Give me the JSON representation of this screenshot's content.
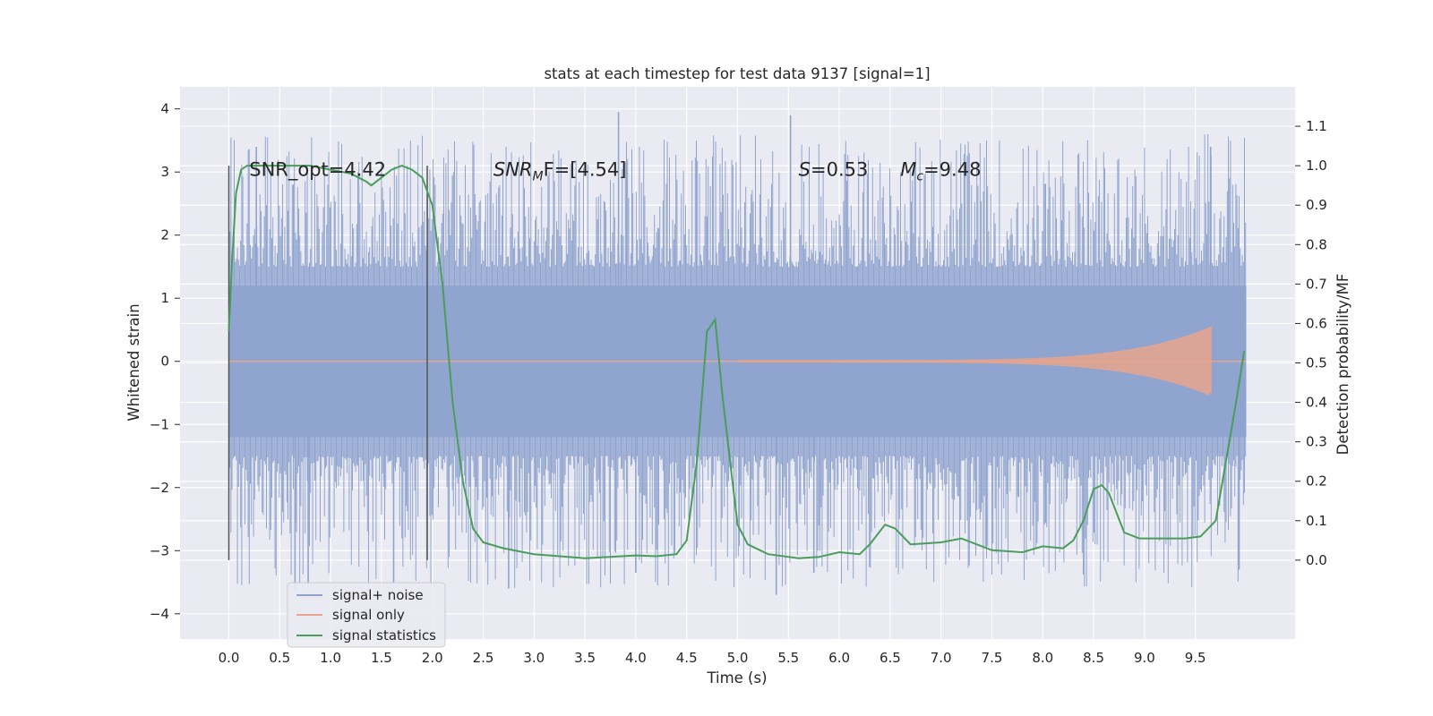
{
  "chart_data": {
    "type": "line",
    "title": "stats at each timestep for test data 9137 [signal=1]",
    "xlabel": "Time (s)",
    "ylabel": "Whitened strain",
    "y2label": "Detection probability/MF",
    "xlim": [
      -0.48,
      10.48
    ],
    "ylim": [
      -4.4,
      4.35
    ],
    "y2lim": [
      -0.2,
      1.2
    ],
    "x_ticks": [
      0.0,
      0.5,
      1.0,
      1.5,
      2.0,
      2.5,
      3.0,
      3.5,
      4.0,
      4.5,
      5.0,
      5.5,
      6.0,
      6.5,
      7.0,
      7.5,
      8.0,
      8.5,
      9.0,
      9.5
    ],
    "x_tick_labels": [
      "0.0",
      "0.5",
      "1.0",
      "1.5",
      "2.0",
      "2.5",
      "3.0",
      "3.5",
      "4.0",
      "4.5",
      "5.0",
      "5.5",
      "6.0",
      "6.5",
      "7.0",
      "7.5",
      "8.0",
      "8.5",
      "9.0",
      "9.5"
    ],
    "y_ticks": [
      -4,
      -3,
      -2,
      -1,
      0,
      1,
      2,
      3,
      4
    ],
    "y_tick_labels": [
      "−4",
      "−3",
      "−2",
      "−1",
      "0",
      "1",
      "2",
      "3",
      "4"
    ],
    "y2_ticks": [
      0.0,
      0.1,
      0.2,
      0.3,
      0.4,
      0.5,
      0.6,
      0.7,
      0.8,
      0.9,
      1.0,
      1.1
    ],
    "y2_tick_labels": [
      "0.0",
      "0.1",
      "0.2",
      "0.3",
      "0.4",
      "0.5",
      "0.6",
      "0.7",
      "0.8",
      "0.9",
      "1.0",
      "1.1"
    ],
    "grid": true,
    "legend_position": "lower-left",
    "annotations": [
      {
        "text": "SNR_opt=4.42",
        "x": 0.2,
        "y": 3.05
      },
      {
        "text": "SNR",
        "sub": "M",
        "tail": "F=[4.54]",
        "italic_prefix": true,
        "x": 2.6,
        "y": 3.05
      },
      {
        "text": "S",
        "tail": "=0.53",
        "italic_prefix": true,
        "x": 5.6,
        "y": 3.05
      },
      {
        "text": "M",
        "sub": "c",
        "tail": "=9.48",
        "italic_prefix": true,
        "x": 6.6,
        "y": 3.05
      }
    ],
    "vlines": [
      {
        "x": 0.0,
        "y0": -3.15,
        "y1": 3.1
      },
      {
        "x": 1.95,
        "y0": -3.15,
        "y1": 3.1
      }
    ],
    "series": [
      {
        "name": "signal+ noise",
        "color": "#8fa4cf",
        "axis": "left",
        "style": "noise",
        "x_range": [
          0.0,
          10.0
        ],
        "core_amplitude": 1.2,
        "peak_values": [
          {
            "x": 0.27,
            "y": 3.4
          },
          {
            "x": 0.65,
            "y": -3.6
          },
          {
            "x": 0.78,
            "y": -3.55
          },
          {
            "x": 1.62,
            "y": -3.5
          },
          {
            "x": 3.83,
            "y": 3.95
          },
          {
            "x": 2.75,
            "y": -3.6
          },
          {
            "x": 4.0,
            "y": -3.35
          },
          {
            "x": 5.38,
            "y": -3.7
          },
          {
            "x": 5.52,
            "y": 3.9
          },
          {
            "x": 5.75,
            "y": -3.35
          },
          {
            "x": 9.65,
            "y": 3.4
          },
          {
            "x": 9.93,
            "y": -3.3
          }
        ]
      },
      {
        "name": "signal only",
        "color": "#e8a48c",
        "axis": "left",
        "style": "chirp",
        "x_range": [
          5.0,
          9.65
        ],
        "amplitude_start": 0.02,
        "amplitude_peak": 0.55
      },
      {
        "name": "signal statistics",
        "color": "#4a9d5a",
        "axis": "right",
        "style": "line",
        "x": [
          0.0,
          0.03,
          0.07,
          0.12,
          0.18,
          0.3,
          0.5,
          0.8,
          1.0,
          1.2,
          1.35,
          1.4,
          1.5,
          1.6,
          1.7,
          1.8,
          1.9,
          2.0,
          2.1,
          2.2,
          2.3,
          2.4,
          2.5,
          2.7,
          3.0,
          3.5,
          4.0,
          4.2,
          4.4,
          4.5,
          4.6,
          4.7,
          4.78,
          4.85,
          4.95,
          5.0,
          5.1,
          5.3,
          5.6,
          5.8,
          6.0,
          6.2,
          6.3,
          6.45,
          6.55,
          6.7,
          7.0,
          7.2,
          7.5,
          7.8,
          8.0,
          8.2,
          8.3,
          8.4,
          8.5,
          8.58,
          8.65,
          8.8,
          8.95,
          9.0,
          9.2,
          9.4,
          9.55,
          9.7,
          9.8,
          9.9,
          9.98
        ],
        "values": [
          0.58,
          0.75,
          0.93,
          0.99,
          1.0,
          1.0,
          1.0,
          1.0,
          0.99,
          0.98,
          0.96,
          0.95,
          0.97,
          0.99,
          1.0,
          0.99,
          0.97,
          0.9,
          0.7,
          0.4,
          0.2,
          0.08,
          0.045,
          0.03,
          0.015,
          0.005,
          0.012,
          0.01,
          0.015,
          0.05,
          0.25,
          0.58,
          0.61,
          0.42,
          0.2,
          0.09,
          0.04,
          0.015,
          0.005,
          0.008,
          0.02,
          0.015,
          0.04,
          0.09,
          0.08,
          0.04,
          0.045,
          0.055,
          0.025,
          0.02,
          0.035,
          0.03,
          0.05,
          0.1,
          0.18,
          0.19,
          0.17,
          0.07,
          0.055,
          0.055,
          0.055,
          0.055,
          0.06,
          0.1,
          0.25,
          0.4,
          0.53
        ]
      }
    ]
  }
}
